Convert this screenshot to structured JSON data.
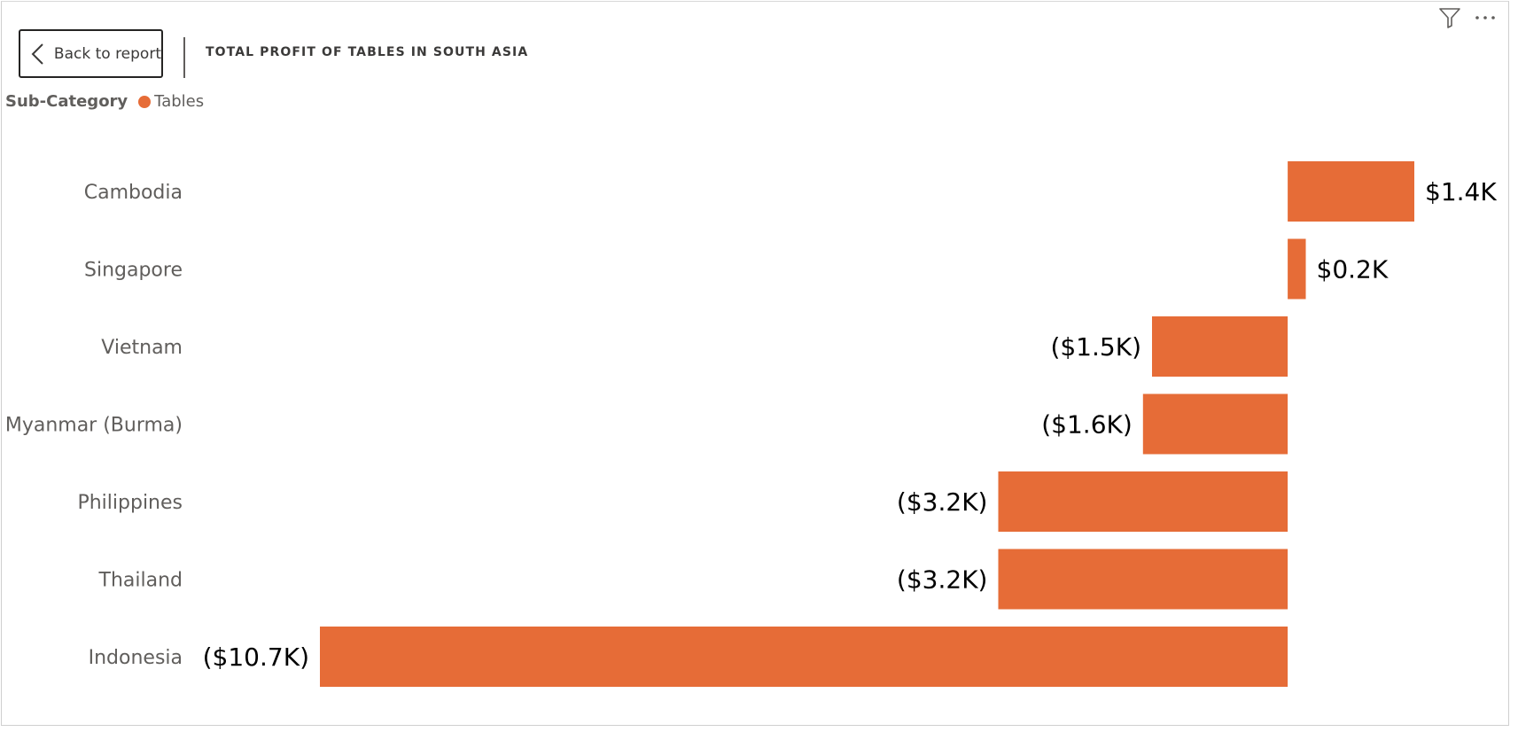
{
  "header": {
    "back_label": "Back to report",
    "title": "TOTAL PROFIT OF TABLES IN SOUTH ASIA"
  },
  "legend": {
    "title": "Sub-Category",
    "item": "Tables",
    "color": "#E66C37"
  },
  "icons": {
    "back": "chevron-left-icon",
    "filter": "filter-icon",
    "more": "more-options-icon"
  },
  "chart_data": {
    "type": "bar",
    "orientation": "horizontal",
    "title": "TOTAL PROFIT OF TABLES IN SOUTH ASIA",
    "categories": [
      "Cambodia",
      "Singapore",
      "Vietnam",
      "Myanmar (Burma)",
      "Philippines",
      "Thailand",
      "Indonesia"
    ],
    "series": [
      {
        "name": "Tables",
        "color": "#E66C37",
        "values": [
          1.4,
          0.2,
          -1.5,
          -1.6,
          -3.2,
          -3.2,
          -10.7
        ],
        "labels": [
          "$1.4K",
          "$0.2K",
          "($1.5K)",
          "($1.6K)",
          "($3.2K)",
          "($3.2K)",
          "($10.7K)"
        ]
      }
    ],
    "value_unit": "thousands of dollars",
    "xlim": [
      -10.7,
      1.4
    ],
    "grid": false,
    "legend_position": "top-left"
  }
}
